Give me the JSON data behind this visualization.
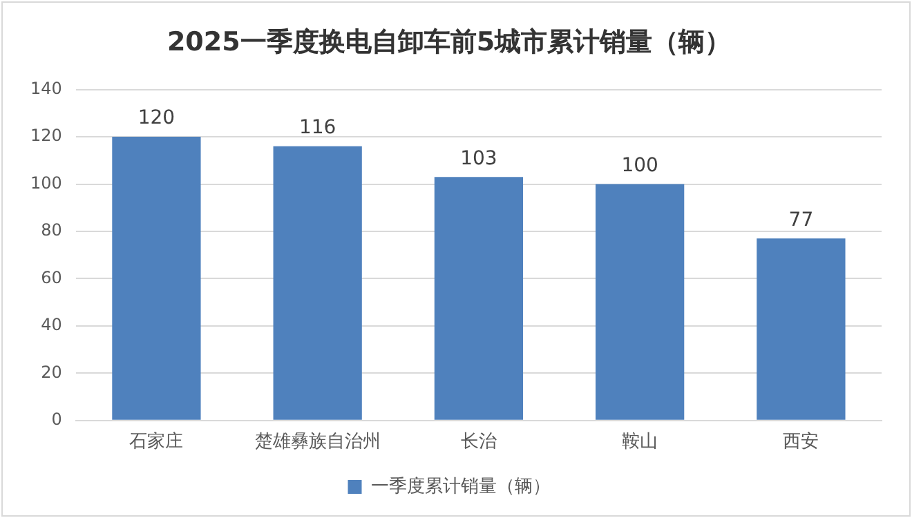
{
  "chart_data": {
    "type": "bar",
    "title": "2025一季度换电自卸车前5城市累计销量（辆）",
    "categories": [
      "石家庄",
      "楚雄彝族自治州",
      "长治",
      "鞍山",
      "西安"
    ],
    "series": [
      {
        "name": "一季度累计销量（辆）",
        "color": "#4f81bd",
        "values": [
          120,
          116,
          103,
          100,
          77
        ]
      }
    ],
    "ylim": [
      0,
      140
    ],
    "yticks": [
      0,
      20,
      40,
      60,
      80,
      100,
      120,
      140
    ],
    "grid": "y",
    "legend": "bottom",
    "data_labels": true
  }
}
